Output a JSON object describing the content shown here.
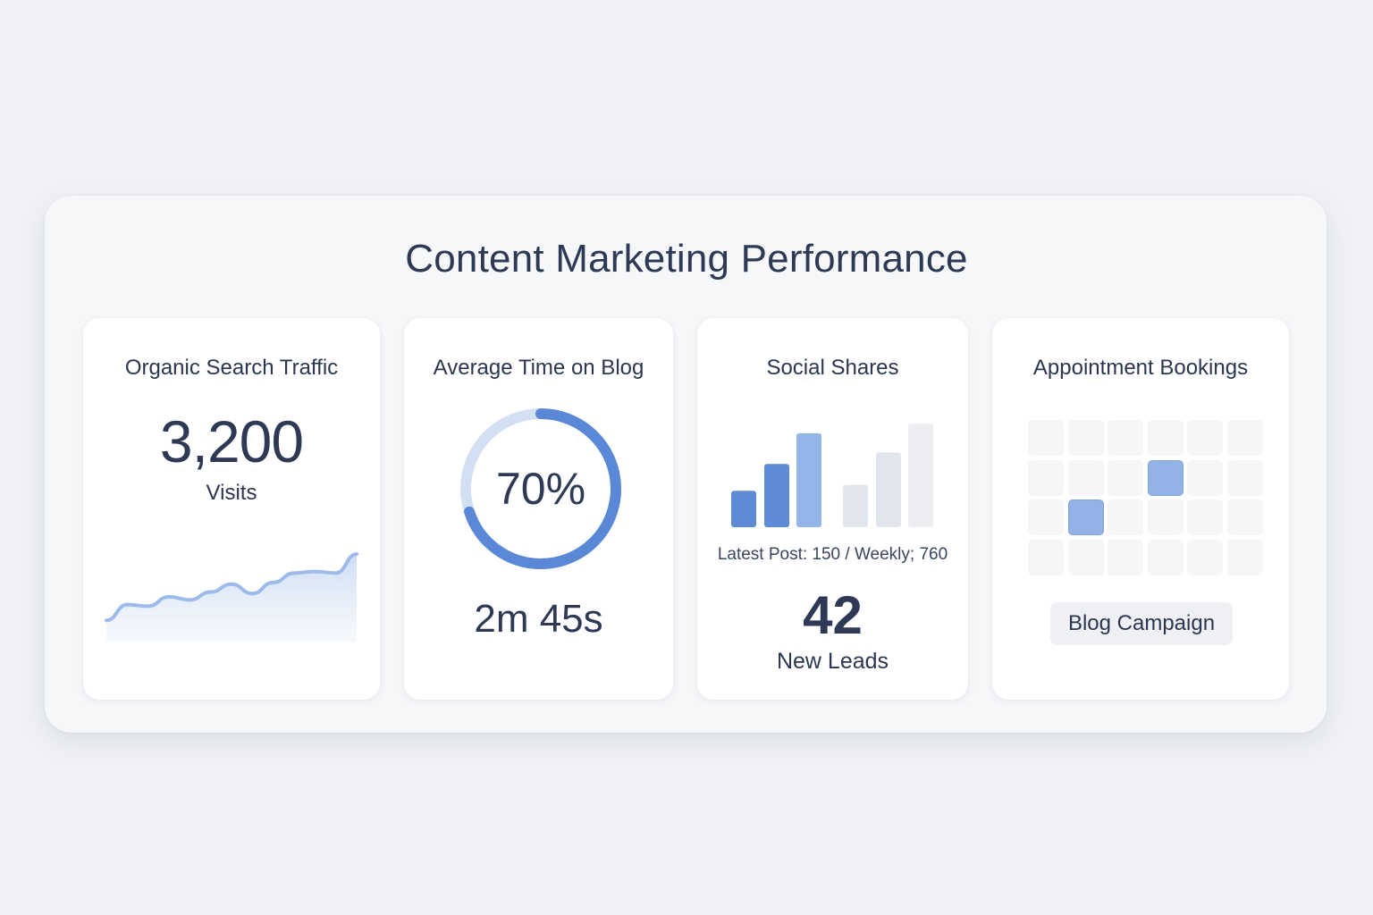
{
  "title": "Content Marketing Performance",
  "colors": {
    "accent": "#5a88d6",
    "accent_light": "#c9d9f2",
    "bar_muted": "#e1e5ec",
    "booked": "#93b3e6"
  },
  "cards": {
    "organic": {
      "title": "Organic Search Traffic",
      "value": "3,200",
      "unit": "Visits"
    },
    "time": {
      "title": "Average Time on Blog",
      "percent_label": "70%",
      "percent": 70,
      "value": "2m 45s"
    },
    "social": {
      "title": "Social Shares",
      "caption": "Latest Post: 150 / Weekly; 760",
      "leads_value": "42",
      "leads_label": "New Leads"
    },
    "appointments": {
      "title": "Appointment Bookings",
      "button": "Blog Campaign",
      "grid": {
        "rows": 4,
        "cols": 6,
        "booked": [
          [
            1,
            3
          ],
          [
            2,
            1
          ]
        ]
      }
    }
  },
  "chart_data": [
    {
      "type": "area",
      "x": [
        0,
        1,
        2,
        3,
        4,
        5,
        6,
        7,
        8,
        9,
        10,
        11,
        12
      ],
      "values": [
        10,
        20,
        19,
        25,
        23,
        28,
        33,
        27,
        34,
        40,
        41,
        40,
        52
      ],
      "ylim": [
        0,
        60
      ]
    },
    {
      "type": "bar",
      "categories": [
        "1",
        "2",
        "3",
        "4",
        "5",
        "6"
      ],
      "series": [
        {
          "values": [
            38,
            66,
            98,
            44,
            78,
            108
          ]
        }
      ],
      "ylim": [
        0,
        110
      ]
    }
  ]
}
